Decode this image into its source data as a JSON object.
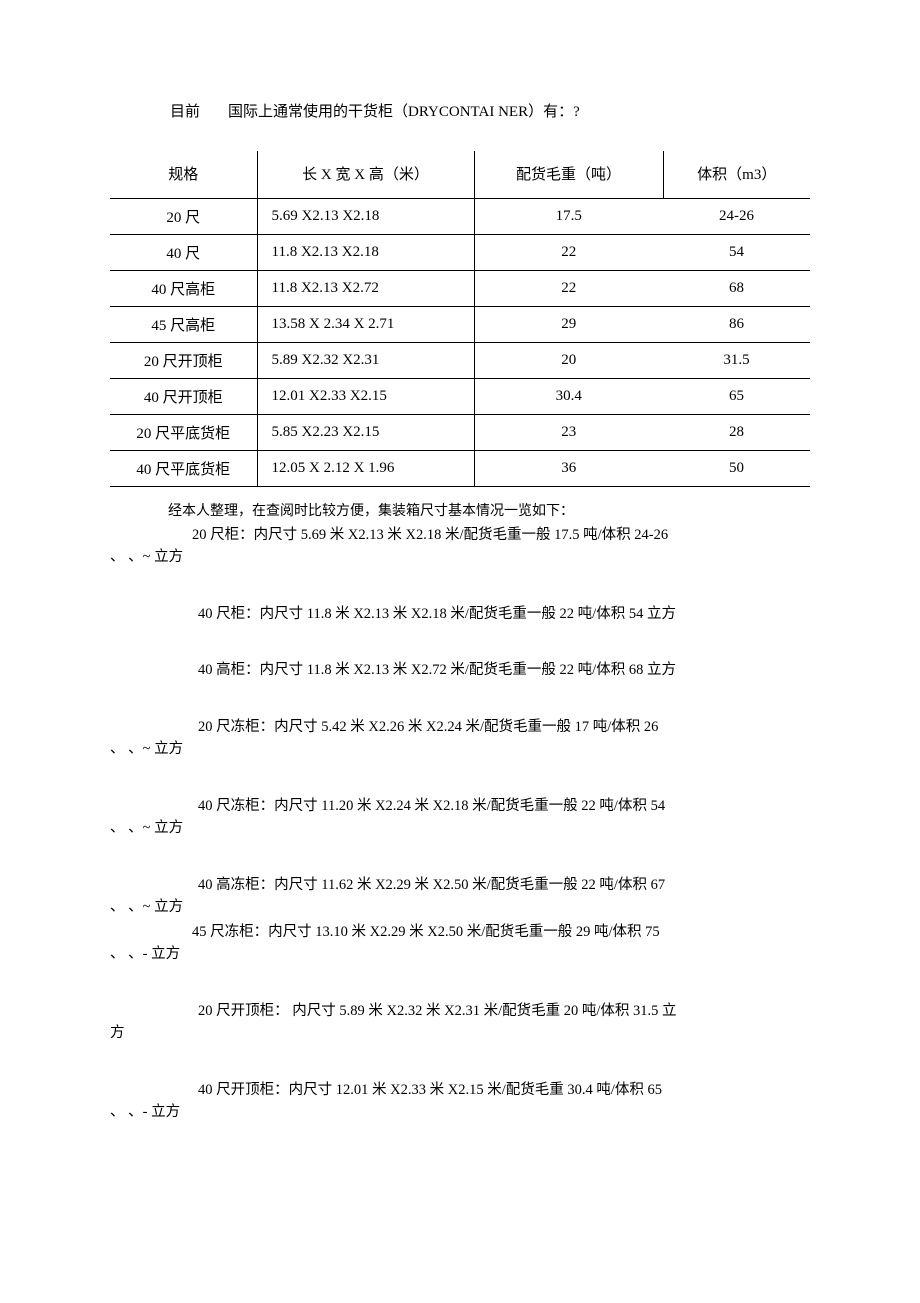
{
  "title": {
    "prefix": "目前",
    "rest": "国际上通常使用的干货柜（DRYCONTAI NER）有：?"
  },
  "table": {
    "headers": [
      "规格",
      "长 X 宽 X 高（米）",
      "配货毛重（吨）",
      "体积（m3）"
    ],
    "rows": [
      [
        "20 尺",
        "5.69 X2.13 X2.18",
        "17.5",
        "24-26"
      ],
      [
        "40 尺",
        "11.8 X2.13 X2.18",
        "22",
        "54"
      ],
      [
        "40 尺高柜",
        "11.8 X2.13 X2.72",
        "22",
        "68"
      ],
      [
        "45 尺高柜",
        "13.58 X 2.34 X 2.71",
        "29",
        "86"
      ],
      [
        "20 尺开顶柜",
        "5.89 X2.32 X2.31",
        "20",
        "31.5"
      ],
      [
        "40 尺开顶柜",
        "12.01 X2.33 X2.15",
        "30.4",
        "65"
      ],
      [
        "20 尺平底货柜",
        "5.85 X2.23 X2.15",
        "23",
        "28"
      ],
      [
        "40 尺平底货柜",
        "12.05 X 2.12 X 1.96",
        "36",
        "50"
      ]
    ]
  },
  "intro": "经本人整理，在查阅时比较方便，集装箱尺寸基本情况一览如下：",
  "paragraphs": [
    {
      "line1": "20 尺柜：内尺寸 5.69 米 X2.13 米 X2.18 米/配货毛重一般 17.5 吨/体积 24-26",
      "cont": "、 、~ 立方",
      "tight": true,
      "indent": "indent1"
    },
    {
      "line1": "40 尺柜：内尺寸 11.8 米 X2.13 米 X2.18 米/配货毛重一般 22 吨/体积 54 立方",
      "cont": "",
      "tight": false,
      "indent": "indent2"
    },
    {
      "line1": "40 高柜：内尺寸 11.8 米 X2.13 米 X2.72 米/配货毛重一般 22 吨/体积 68 立方",
      "cont": "",
      "tight": false,
      "indent": "indent2"
    },
    {
      "line1": "20 尺冻柜：内尺寸 5.42 米 X2.26 米 X2.24 米/配货毛重一般 17 吨/体积 26",
      "cont": "、 、~ 立方",
      "tight": false,
      "indent": "indent2"
    },
    {
      "line1": "40 尺冻柜：内尺寸 11.20 米 X2.24 米 X2.18 米/配货毛重一般 22 吨/体积 54",
      "cont": "、 、~ 立方",
      "tight": false,
      "indent": "indent2"
    },
    {
      "line1": "40 高冻柜：内尺寸 11.62 米 X2.29 米 X2.50 米/配货毛重一般 22 吨/体积 67",
      "cont": "、 、~ 立方",
      "tight": false,
      "indent": "indent2"
    },
    {
      "line1": "45 尺冻柜：内尺寸 13.10 米 X2.29 米 X2.50 米/配货毛重一般 29 吨/体积 75",
      "cont": "、 、- 立方",
      "tight": true,
      "indent": "indent1"
    },
    {
      "line1": "20 尺开顶柜： 内尺寸 5.89 米 X2.32 米 X2.31 米/配货毛重 20 吨/体积 31.5 立",
      "cont": "方",
      "tight": false,
      "indent": "indent2"
    },
    {
      "line1": "40 尺开顶柜：内尺寸 12.01 米 X2.33 米 X2.15 米/配货毛重 30.4 吨/体积 65",
      "cont": "、 、- 立方",
      "tight": false,
      "indent": "indent2"
    }
  ]
}
